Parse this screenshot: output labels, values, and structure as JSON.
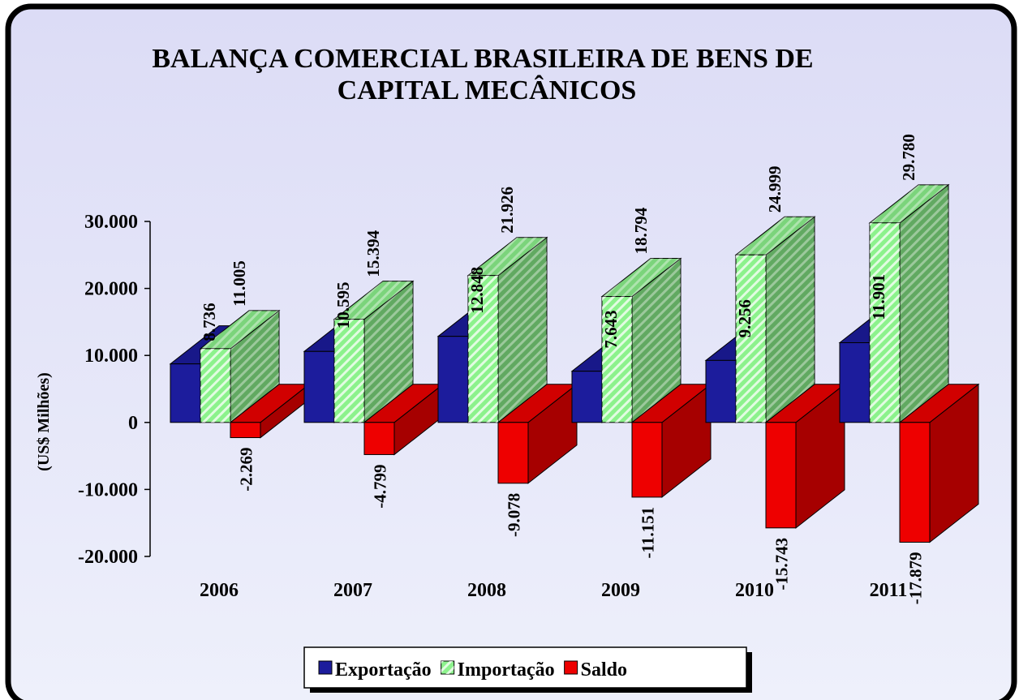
{
  "chart_data": {
    "type": "bar3d",
    "title": [
      "BALANÇA COMERCIAL BRASILEIRA DE BENS DE",
      "CAPITAL MECÂNICOS"
    ],
    "y_label": "(US$ Milhões)",
    "categories": [
      "2006",
      "2007",
      "2008",
      "2009",
      "2010",
      "2011"
    ],
    "series": [
      {
        "name": "Exportação",
        "color": "#1c1c9c",
        "values": [
          8736,
          10595,
          12848,
          7643,
          9256,
          11901
        ],
        "value_labels": [
          "8.736",
          "10.595",
          "12.848",
          "7.643",
          "9.256",
          "11.901"
        ]
      },
      {
        "name": "Importação",
        "color": "#8cf28c",
        "hatch": true,
        "values": [
          11005,
          15394,
          21926,
          18794,
          24999,
          29780
        ],
        "value_labels": [
          "11.005",
          "15.394",
          "21.926",
          "18.794",
          "24.999",
          "29.780"
        ]
      },
      {
        "name": "Saldo",
        "color": "#ee0000",
        "values": [
          -2269,
          -4799,
          -9078,
          -11151,
          -15743,
          -17879
        ],
        "value_labels": [
          "-2.269",
          "-4.799",
          "-9.078",
          "-11.151",
          "-15.743",
          "-17.879"
        ]
      }
    ],
    "ylim": [
      -20000,
      30000
    ],
    "yticks": [
      {
        "value": -20000,
        "label": "-20.000"
      },
      {
        "value": -10000,
        "label": "-10.000"
      },
      0,
      {
        "value": 10000,
        "label": "10.000"
      },
      {
        "value": 20000,
        "label": "20.000"
      },
      {
        "value": 30000,
        "label": "30.000"
      }
    ],
    "legend": "bottom"
  }
}
